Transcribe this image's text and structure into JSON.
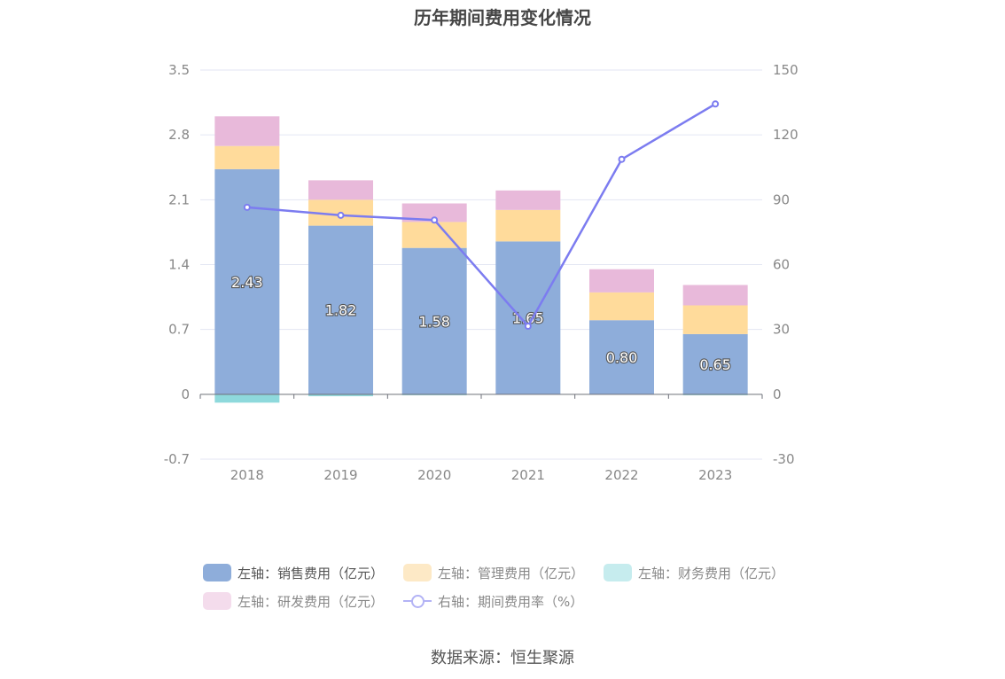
{
  "chart_data": {
    "type": "bar",
    "title": "历年期间费用变化情况",
    "categories": [
      "2018",
      "2019",
      "2020",
      "2021",
      "2022",
      "2023"
    ],
    "stacked": true,
    "left_axis": {
      "min": -0.7,
      "max": 3.5,
      "ticks": [
        "3.5",
        "2.8",
        "2.1",
        "1.4",
        "0.7",
        "0",
        "-0.7"
      ]
    },
    "right_axis": {
      "min": -30,
      "max": 150,
      "ticks": [
        "150",
        "120",
        "90",
        "60",
        "30",
        "0",
        "-30"
      ]
    },
    "series": [
      {
        "name": "左轴：销售费用（亿元）",
        "axis": "left",
        "type": "bar",
        "color": "#8eadda",
        "values": [
          2.43,
          1.82,
          1.58,
          1.65,
          0.8,
          0.65
        ],
        "labels": [
          "2.43",
          "1.82",
          "1.58",
          "1.65",
          "0.80",
          "0.65"
        ]
      },
      {
        "name": "左轴：管理费用（亿元）",
        "axis": "left",
        "type": "bar",
        "color": "#ffdb9b",
        "values": [
          0.25,
          0.28,
          0.28,
          0.34,
          0.3,
          0.31
        ]
      },
      {
        "name": "左轴：财务费用（亿元）",
        "axis": "left",
        "type": "bar",
        "color": "#8ed9dc",
        "values": [
          -0.09,
          -0.02,
          -0.01,
          0.0,
          0.0,
          -0.01
        ]
      },
      {
        "name": "左轴：研发费用（亿元）",
        "axis": "left",
        "type": "bar",
        "color": "#e8b9da",
        "values": [
          0.32,
          0.21,
          0.2,
          0.21,
          0.25,
          0.22
        ]
      },
      {
        "name": "右轴：期间费用率（%）",
        "axis": "right",
        "type": "line",
        "color": "#7c7cf0",
        "values": [
          86.5,
          82.8,
          80.6,
          31.5,
          108.7,
          134.3
        ]
      }
    ],
    "legend_position": "bottom"
  },
  "source": "数据来源：恒生聚源"
}
